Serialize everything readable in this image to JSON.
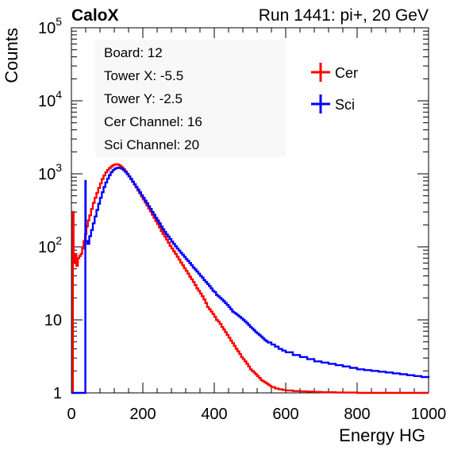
{
  "header": {
    "left": "CaloX",
    "right": "Run 1441: pi+, 20 GeV"
  },
  "info_box": {
    "lines": [
      "Board: 12",
      "Tower X: -5.5",
      "Tower Y: -2.5",
      "Cer Channel: 16",
      "Sci Channel: 20"
    ]
  },
  "chart_data": {
    "type": "line",
    "title": "",
    "xlabel": "Energy HG",
    "ylabel": "Counts",
    "xlim": [
      0,
      1000
    ],
    "ylim": [
      1,
      100000
    ],
    "yscale": "log",
    "xticks": [
      0,
      200,
      400,
      600,
      800,
      1000
    ],
    "xtick_labels": [
      "0",
      "200",
      "400",
      "600",
      "800",
      "1000"
    ],
    "yticks": [
      1,
      10,
      100,
      1000,
      10000,
      100000
    ],
    "ytick_labels": [
      {
        "base": "1",
        "exp": ""
      },
      {
        "base": "10",
        "exp": ""
      },
      {
        "base": "10",
        "exp": "2"
      },
      {
        "base": "10",
        "exp": "3"
      },
      {
        "base": "10",
        "exp": "4"
      },
      {
        "base": "10",
        "exp": "5"
      }
    ],
    "legend_position": "top-right",
    "grid": false,
    "series": [
      {
        "name": "Cer",
        "color": "#ff0000",
        "points": [
          [
            0,
            1
          ],
          [
            4,
            300
          ],
          [
            6,
            60
          ],
          [
            10,
            80
          ],
          [
            14,
            55
          ],
          [
            18,
            70
          ],
          [
            22,
            75
          ],
          [
            26,
            80
          ],
          [
            30,
            95
          ],
          [
            34,
            120
          ],
          [
            38,
            150
          ],
          [
            42,
            190
          ],
          [
            46,
            230
          ],
          [
            50,
            270
          ],
          [
            55,
            330
          ],
          [
            60,
            400
          ],
          [
            65,
            470
          ],
          [
            70,
            550
          ],
          [
            75,
            640
          ],
          [
            80,
            740
          ],
          [
            85,
            850
          ],
          [
            90,
            950
          ],
          [
            95,
            1050
          ],
          [
            100,
            1130
          ],
          [
            105,
            1200
          ],
          [
            110,
            1260
          ],
          [
            115,
            1310
          ],
          [
            120,
            1340
          ],
          [
            125,
            1350
          ],
          [
            130,
            1330
          ],
          [
            135,
            1290
          ],
          [
            140,
            1230
          ],
          [
            145,
            1160
          ],
          [
            150,
            1080
          ],
          [
            155,
            1000
          ],
          [
            160,
            920
          ],
          [
            165,
            850
          ],
          [
            170,
            780
          ],
          [
            175,
            710
          ],
          [
            180,
            650
          ],
          [
            185,
            590
          ],
          [
            190,
            540
          ],
          [
            195,
            490
          ],
          [
            200,
            445
          ],
          [
            205,
            405
          ],
          [
            210,
            370
          ],
          [
            215,
            335
          ],
          [
            220,
            305
          ],
          [
            225,
            275
          ],
          [
            230,
            250
          ],
          [
            235,
            225
          ],
          [
            240,
            205
          ],
          [
            245,
            185
          ],
          [
            250,
            165
          ],
          [
            255,
            150
          ],
          [
            260,
            138
          ],
          [
            265,
            126
          ],
          [
            270,
            114
          ],
          [
            275,
            103
          ],
          [
            280,
            95
          ],
          [
            285,
            87
          ],
          [
            290,
            80
          ],
          [
            295,
            73
          ],
          [
            300,
            67
          ],
          [
            305,
            61
          ],
          [
            310,
            56
          ],
          [
            315,
            51
          ],
          [
            320,
            47
          ],
          [
            325,
            43
          ],
          [
            330,
            39
          ],
          [
            335,
            36
          ],
          [
            340,
            33
          ],
          [
            345,
            30
          ],
          [
            350,
            27
          ],
          [
            355,
            25
          ],
          [
            360,
            23
          ],
          [
            365,
            21
          ],
          [
            370,
            19
          ],
          [
            375,
            17
          ],
          [
            380,
            15
          ],
          [
            385,
            14
          ],
          [
            390,
            13
          ],
          [
            395,
            12
          ],
          [
            400,
            11
          ],
          [
            405,
            10
          ],
          [
            410,
            9.5
          ],
          [
            415,
            8.8
          ],
          [
            420,
            8
          ],
          [
            425,
            7.4
          ],
          [
            430,
            6.8
          ],
          [
            435,
            6.2
          ],
          [
            440,
            5.7
          ],
          [
            445,
            5.2
          ],
          [
            450,
            4.8
          ],
          [
            455,
            4.4
          ],
          [
            460,
            4
          ],
          [
            465,
            3.7
          ],
          [
            470,
            3.4
          ],
          [
            475,
            3.1
          ],
          [
            480,
            2.9
          ],
          [
            485,
            2.7
          ],
          [
            490,
            2.5
          ],
          [
            495,
            2.3
          ],
          [
            500,
            2.1
          ],
          [
            505,
            2
          ],
          [
            510,
            1.9
          ],
          [
            515,
            1.8
          ],
          [
            520,
            1.7
          ],
          [
            525,
            1.6
          ],
          [
            530,
            1.5
          ],
          [
            535,
            1.45
          ],
          [
            540,
            1.4
          ],
          [
            545,
            1.35
          ],
          [
            550,
            1.3
          ],
          [
            555,
            1.25
          ],
          [
            560,
            1.2
          ],
          [
            570,
            1.15
          ],
          [
            580,
            1.12
          ],
          [
            590,
            1.1
          ],
          [
            600,
            1.08
          ],
          [
            620,
            1.06
          ],
          [
            640,
            1.05
          ],
          [
            660,
            1.04
          ],
          [
            680,
            1.03
          ],
          [
            700,
            1.02
          ],
          [
            720,
            1.02
          ],
          [
            740,
            1.01
          ],
          [
            760,
            1.01
          ],
          [
            780,
            1.01
          ],
          [
            800,
            1.0
          ],
          [
            820,
            1.0
          ],
          [
            840,
            1.0
          ],
          [
            860,
            1.0
          ],
          [
            880,
            1.0
          ],
          [
            900,
            1.0
          ],
          [
            920,
            1.0
          ],
          [
            940,
            1.0
          ],
          [
            960,
            1.0
          ],
          [
            980,
            1.0
          ],
          [
            1000,
            1.0
          ]
        ]
      },
      {
        "name": "Sci",
        "color": "#0000ff",
        "points": [
          [
            0,
            1
          ],
          [
            38,
            1
          ],
          [
            39,
            800
          ],
          [
            40,
            120
          ],
          [
            45,
            110
          ],
          [
            50,
            140
          ],
          [
            55,
            170
          ],
          [
            60,
            210
          ],
          [
            65,
            260
          ],
          [
            70,
            320
          ],
          [
            75,
            390
          ],
          [
            80,
            470
          ],
          [
            85,
            560
          ],
          [
            90,
            660
          ],
          [
            95,
            760
          ],
          [
            100,
            860
          ],
          [
            105,
            960
          ],
          [
            110,
            1050
          ],
          [
            115,
            1120
          ],
          [
            120,
            1170
          ],
          [
            125,
            1200
          ],
          [
            130,
            1210
          ],
          [
            135,
            1200
          ],
          [
            140,
            1170
          ],
          [
            145,
            1120
          ],
          [
            150,
            1060
          ],
          [
            155,
            990
          ],
          [
            160,
            920
          ],
          [
            165,
            850
          ],
          [
            170,
            780
          ],
          [
            175,
            720
          ],
          [
            180,
            660
          ],
          [
            185,
            610
          ],
          [
            190,
            560
          ],
          [
            195,
            510
          ],
          [
            200,
            470
          ],
          [
            205,
            430
          ],
          [
            210,
            395
          ],
          [
            215,
            360
          ],
          [
            220,
            330
          ],
          [
            225,
            300
          ],
          [
            230,
            275
          ],
          [
            235,
            250
          ],
          [
            240,
            230
          ],
          [
            245,
            210
          ],
          [
            250,
            190
          ],
          [
            255,
            175
          ],
          [
            260,
            160
          ],
          [
            265,
            148
          ],
          [
            270,
            138
          ],
          [
            275,
            128
          ],
          [
            280,
            118
          ],
          [
            285,
            110
          ],
          [
            290,
            102
          ],
          [
            295,
            95
          ],
          [
            300,
            89
          ],
          [
            305,
            83
          ],
          [
            310,
            78
          ],
          [
            315,
            73
          ],
          [
            320,
            68
          ],
          [
            325,
            64
          ],
          [
            330,
            60
          ],
          [
            335,
            56
          ],
          [
            340,
            52
          ],
          [
            345,
            49
          ],
          [
            350,
            46
          ],
          [
            355,
            43
          ],
          [
            360,
            40
          ],
          [
            365,
            38
          ],
          [
            370,
            35
          ],
          [
            375,
            33
          ],
          [
            380,
            31
          ],
          [
            385,
            29
          ],
          [
            390,
            27
          ],
          [
            395,
            25
          ],
          [
            400,
            24
          ],
          [
            405,
            22
          ],
          [
            410,
            21
          ],
          [
            415,
            20
          ],
          [
            420,
            19
          ],
          [
            425,
            18
          ],
          [
            430,
            17
          ],
          [
            435,
            16
          ],
          [
            440,
            15
          ],
          [
            445,
            14
          ],
          [
            450,
            13
          ],
          [
            455,
            12.5
          ],
          [
            460,
            12
          ],
          [
            465,
            11.5
          ],
          [
            470,
            11
          ],
          [
            475,
            10.5
          ],
          [
            480,
            10
          ],
          [
            485,
            9.5
          ],
          [
            490,
            9
          ],
          [
            495,
            8.5
          ],
          [
            500,
            8
          ],
          [
            505,
            7.6
          ],
          [
            510,
            7.2
          ],
          [
            515,
            6.8
          ],
          [
            520,
            6.5
          ],
          [
            525,
            6.2
          ],
          [
            530,
            5.9
          ],
          [
            535,
            5.6
          ],
          [
            540,
            5.3
          ],
          [
            545,
            5.1
          ],
          [
            550,
            4.9
          ],
          [
            560,
            4.6
          ],
          [
            570,
            4.3
          ],
          [
            580,
            4
          ],
          [
            590,
            3.8
          ],
          [
            600,
            3.6
          ],
          [
            620,
            3.3
          ],
          [
            640,
            3.1
          ],
          [
            660,
            2.9
          ],
          [
            680,
            2.7
          ],
          [
            700,
            2.6
          ],
          [
            720,
            2.5
          ],
          [
            740,
            2.4
          ],
          [
            760,
            2.3
          ],
          [
            780,
            2.2
          ],
          [
            800,
            2.1
          ],
          [
            820,
            2.05
          ],
          [
            840,
            2.0
          ],
          [
            860,
            1.95
          ],
          [
            880,
            1.9
          ],
          [
            900,
            1.85
          ],
          [
            920,
            1.8
          ],
          [
            940,
            1.75
          ],
          [
            960,
            1.7
          ],
          [
            980,
            1.65
          ],
          [
            1000,
            1.6
          ]
        ]
      }
    ]
  }
}
